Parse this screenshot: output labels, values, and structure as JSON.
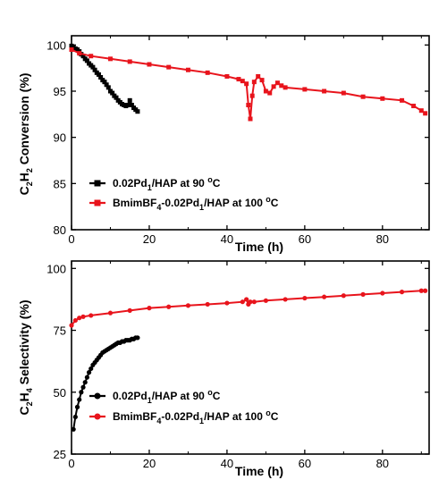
{
  "chart_data": [
    {
      "type": "line",
      "xlabel": "Time (h)",
      "ylabel": "C2H2 Conversion (%)",
      "ylabel_parts": [
        "C",
        "2",
        "H",
        "2",
        " Conversion (%)"
      ],
      "xlim": [
        0,
        92
      ],
      "ylim": [
        80,
        101
      ],
      "xticks": [
        0,
        20,
        40,
        60,
        80
      ],
      "yticks": [
        80,
        85,
        90,
        95,
        100
      ],
      "legend_position": "bottom-left",
      "series": [
        {
          "name": "0.02Pd1/HAP at 90 °C",
          "name_parts": [
            "0.02Pd",
            "1",
            "/HAP at 90 ",
            "o",
            "C"
          ],
          "color": "#000000",
          "marker": "square",
          "x": [
            0,
            0.5,
            1,
            1.5,
            2,
            2.5,
            3,
            3.5,
            4,
            4.5,
            5,
            5.5,
            6,
            6.5,
            7,
            7.5,
            8,
            8.5,
            9,
            9.5,
            10,
            10.5,
            11,
            11.5,
            12,
            12.5,
            13,
            13.5,
            14,
            14.5,
            15,
            15.5,
            16,
            16.5,
            17
          ],
          "y": [
            99.9,
            99.8,
            99.6,
            99.5,
            99.3,
            99.0,
            98.8,
            98.5,
            98.3,
            98.0,
            97.8,
            97.6,
            97.3,
            97.0,
            96.8,
            96.5,
            96.2,
            96.0,
            95.7,
            95.4,
            95.0,
            94.8,
            94.5,
            94.3,
            94.0,
            93.8,
            93.6,
            93.5,
            93.4,
            93.5,
            94.0,
            93.5,
            93.2,
            93.0,
            92.8
          ]
        },
        {
          "name": "BmimBF4-0.02Pd1/HAP at 100 °C",
          "name_parts": [
            "BmimBF",
            "4",
            "-0.02Pd",
            "1",
            "/HAP at 100 ",
            "o",
            "C"
          ],
          "color": "#e8141c",
          "marker": "square",
          "x": [
            0,
            2,
            5,
            10,
            15,
            20,
            25,
            30,
            35,
            40,
            43,
            44,
            45,
            45.5,
            46,
            46.5,
            47,
            48,
            49,
            50,
            51,
            52,
            53,
            54,
            55,
            60,
            65,
            70,
            75,
            80,
            85,
            88,
            90,
            91
          ],
          "y": [
            99.5,
            99.1,
            98.8,
            98.5,
            98.2,
            97.9,
            97.6,
            97.3,
            97.0,
            96.6,
            96.3,
            96.1,
            95.8,
            93.5,
            92.0,
            94.5,
            96.0,
            96.6,
            96.2,
            95.0,
            94.8,
            95.5,
            95.9,
            95.6,
            95.4,
            95.2,
            95.0,
            94.8,
            94.4,
            94.2,
            94.0,
            93.4,
            92.9,
            92.6
          ]
        }
      ]
    },
    {
      "type": "line",
      "xlabel": "Time (h)",
      "ylabel": "C2H4 Selectivity (%)",
      "ylabel_parts": [
        "C",
        "2",
        "H",
        "4",
        " Selectivity (%)"
      ],
      "xlim": [
        0,
        92
      ],
      "ylim": [
        25,
        103
      ],
      "xticks": [
        0,
        20,
        40,
        60,
        80
      ],
      "yticks": [
        25,
        50,
        75,
        100
      ],
      "legend_position": "bottom-left",
      "series": [
        {
          "name": "0.02Pd1/HAP at 90 °C",
          "name_parts": [
            "0.02Pd",
            "1",
            "/HAP at 90 ",
            "o",
            "C"
          ],
          "color": "#000000",
          "marker": "circle",
          "x": [
            0.5,
            1,
            1.5,
            2,
            2.5,
            3,
            3.5,
            4,
            4.5,
            5,
            5.5,
            6,
            6.5,
            7,
            7.5,
            8,
            8.5,
            9,
            9.5,
            10,
            10.5,
            11,
            11.5,
            12,
            12.5,
            13,
            13.5,
            14,
            14.5,
            15,
            15.5,
            16,
            16.5,
            17
          ],
          "y": [
            35,
            40,
            44,
            47,
            50,
            52,
            54,
            56,
            58,
            59.5,
            61,
            62,
            63,
            64,
            65,
            66,
            66.5,
            67,
            67.5,
            68,
            68.5,
            69,
            69.5,
            70,
            70,
            70.5,
            70.5,
            71,
            71,
            71,
            71.5,
            71.5,
            72,
            72
          ]
        },
        {
          "name": "BmimBF4-0.02Pd1/HAP at 100 °C",
          "name_parts": [
            "BmimBF",
            "4",
            "-0.02Pd",
            "1",
            "/HAP at 100 ",
            "o",
            "C"
          ],
          "color": "#e8141c",
          "marker": "circle",
          "x": [
            0,
            1,
            2,
            3,
            5,
            10,
            15,
            20,
            25,
            30,
            35,
            40,
            44,
            45,
            45.5,
            46,
            47,
            50,
            55,
            60,
            65,
            70,
            75,
            80,
            85,
            90,
            91
          ],
          "y": [
            77,
            79,
            80,
            80.5,
            81,
            82,
            83,
            84,
            84.5,
            85,
            85.5,
            86,
            86.5,
            87.5,
            85.5,
            86.5,
            86.5,
            87,
            87.5,
            88,
            88.5,
            89,
            89.5,
            90,
            90.5,
            91,
            91
          ]
        }
      ]
    }
  ]
}
